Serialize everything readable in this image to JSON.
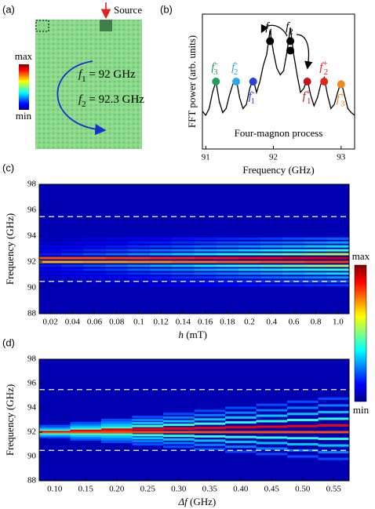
{
  "chart_data": [
    {
      "type": "image",
      "panel": "(a)",
      "source_label": "Source",
      "colorbar": {
        "max": "max",
        "min": "min"
      },
      "annotations": [
        {
          "symbol": "f",
          "sub": "1",
          "rest": " = 92 GHz"
        },
        {
          "symbol": "f",
          "sub": "2",
          "rest": " = 92.3 GHz"
        }
      ]
    },
    {
      "type": "line",
      "panel": "(b)",
      "xlabel": "Frequency (GHz)",
      "ylabel": "FFT power (arb. units)",
      "annotation": "Four-magnon process",
      "xlim": [
        90.95,
        93.2
      ],
      "ylim": [
        0,
        1
      ],
      "xticks": [
        91,
        92,
        93
      ],
      "color": "#000000",
      "x": [
        90.95,
        91.0,
        91.05,
        91.1,
        91.15,
        91.2,
        91.25,
        91.3,
        91.35,
        91.4,
        91.45,
        91.5,
        91.55,
        91.6,
        91.65,
        91.7,
        91.75,
        91.8,
        91.85,
        91.9,
        91.95,
        92.0,
        92.05,
        92.1,
        92.15,
        92.2,
        92.25,
        92.3,
        92.35,
        92.4,
        92.45,
        92.5,
        92.55,
        92.6,
        92.65,
        92.7,
        92.75,
        92.8,
        92.85,
        92.9,
        92.95,
        93.0,
        93.05,
        93.1,
        93.15,
        93.2
      ],
      "values": [
        0.28,
        0.25,
        0.3,
        0.42,
        0.5,
        0.35,
        0.27,
        0.3,
        0.4,
        0.48,
        0.52,
        0.38,
        0.3,
        0.33,
        0.45,
        0.52,
        0.42,
        0.5,
        0.62,
        0.7,
        0.88,
        0.72,
        0.6,
        0.55,
        0.58,
        0.72,
        0.9,
        0.7,
        0.55,
        0.42,
        0.45,
        0.52,
        0.4,
        0.32,
        0.38,
        0.48,
        0.53,
        0.4,
        0.3,
        0.33,
        0.42,
        0.5,
        0.4,
        0.3,
        0.27,
        0.25
      ],
      "peaks": [
        {
          "symbol": "f",
          "sup": "-",
          "sub": "3",
          "x": 91.15,
          "y": [
            0.5
          ],
          "color": "#1fa05a",
          "label_pos": "above"
        },
        {
          "symbol": "f",
          "sup": "-",
          "sub": "2",
          "x": 91.45,
          "y": [
            0.5
          ],
          "color": "#29aae1",
          "label_pos": "above"
        },
        {
          "symbol": "f",
          "sup": "-",
          "sub": "1",
          "x": 91.7,
          "y": [
            0.5
          ],
          "color": "#2a3fd6",
          "label_pos": "below"
        },
        {
          "symbol": "f",
          "sub": "1",
          "x": 91.95,
          "y": [
            0.8
          ],
          "color": "#000000",
          "label_pos": "above"
        },
        {
          "symbol": "f",
          "sub": "2",
          "x": 92.25,
          "y": [
            0.8,
            0.73
          ],
          "color": "#000000",
          "label_pos": "above"
        },
        {
          "symbol": "f",
          "sup": "+",
          "sub": "1",
          "x": 92.5,
          "y": [
            0.5
          ],
          "color": "#c0141e",
          "label_pos": "below"
        },
        {
          "symbol": "f",
          "sup": "+",
          "sub": "2",
          "x": 92.75,
          "y": [
            0.5
          ],
          "color": "#e8231c",
          "label_pos": "above"
        },
        {
          "symbol": "f",
          "sup": "+",
          "sub": "3",
          "x": 93.0,
          "y": [
            0.48
          ],
          "color": "#f08a1c",
          "label_pos": "below"
        }
      ]
    },
    {
      "type": "heatmap",
      "panel": "(c)",
      "xlabel": {
        "symbol": "h",
        "rest": " (mT)"
      },
      "ylabel": "Frequency (GHz)",
      "ylim": [
        88,
        98
      ],
      "yticks": [
        88,
        90,
        92,
        94,
        96,
        98
      ],
      "hlines": [
        90.5,
        95.5
      ],
      "colorbar": {
        "max": "max",
        "min": "min"
      },
      "categories": [
        "0.02",
        "0.04",
        "0.06",
        "0.08",
        "0.1",
        "0.12",
        "0.14",
        "0.16",
        "0.18",
        "0.2",
        "0.4",
        "0.6",
        "0.8",
        "1.0"
      ],
      "y": [
        90.2,
        90.5,
        90.8,
        91.1,
        91.4,
        91.7,
        92.0,
        92.3,
        92.6,
        92.9,
        93.2,
        93.5,
        93.8
      ],
      "z": [
        [
          0.05,
          0.06,
          0.08,
          0.1,
          0.12,
          0.15,
          0.7,
          0.8,
          0.15,
          0.12,
          0.1,
          0.08,
          0.06
        ],
        [
          0.06,
          0.07,
          0.09,
          0.12,
          0.14,
          0.18,
          0.7,
          0.8,
          0.18,
          0.14,
          0.12,
          0.09,
          0.07
        ],
        [
          0.07,
          0.09,
          0.11,
          0.13,
          0.17,
          0.21,
          0.72,
          0.8,
          0.21,
          0.17,
          0.13,
          0.11,
          0.09
        ],
        [
          0.08,
          0.1,
          0.12,
          0.15,
          0.19,
          0.24,
          0.72,
          0.82,
          0.24,
          0.19,
          0.15,
          0.12,
          0.1
        ],
        [
          0.09,
          0.11,
          0.14,
          0.17,
          0.22,
          0.27,
          0.74,
          0.82,
          0.27,
          0.22,
          0.17,
          0.14,
          0.11
        ],
        [
          0.1,
          0.12,
          0.15,
          0.19,
          0.24,
          0.3,
          0.74,
          0.84,
          0.3,
          0.24,
          0.19,
          0.15,
          0.12
        ],
        [
          0.11,
          0.14,
          0.17,
          0.21,
          0.26,
          0.33,
          0.76,
          0.84,
          0.33,
          0.26,
          0.21,
          0.17,
          0.14
        ],
        [
          0.12,
          0.15,
          0.18,
          0.23,
          0.29,
          0.36,
          0.76,
          0.86,
          0.36,
          0.29,
          0.23,
          0.18,
          0.15
        ],
        [
          0.13,
          0.16,
          0.2,
          0.25,
          0.31,
          0.39,
          0.78,
          0.86,
          0.39,
          0.31,
          0.25,
          0.2,
          0.16
        ],
        [
          0.14,
          0.17,
          0.21,
          0.27,
          0.34,
          0.42,
          0.78,
          0.88,
          0.42,
          0.34,
          0.27,
          0.21,
          0.17
        ],
        [
          0.15,
          0.18,
          0.23,
          0.29,
          0.36,
          0.45,
          0.8,
          0.88,
          0.45,
          0.36,
          0.29,
          0.23,
          0.18
        ],
        [
          0.16,
          0.2,
          0.24,
          0.31,
          0.38,
          0.48,
          0.8,
          0.9,
          0.48,
          0.38,
          0.31,
          0.24,
          0.2
        ],
        [
          0.17,
          0.21,
          0.26,
          0.33,
          0.41,
          0.51,
          0.82,
          0.9,
          0.51,
          0.41,
          0.33,
          0.26,
          0.21
        ],
        [
          0.18,
          0.22,
          0.28,
          0.35,
          0.43,
          0.54,
          0.82,
          0.92,
          0.54,
          0.43,
          0.35,
          0.28,
          0.22
        ]
      ]
    },
    {
      "type": "heatmap",
      "panel": "(d)",
      "xlabel": {
        "symbol": "Δf",
        "rest": " (GHz)"
      },
      "ylabel": "Frequency (GHz)",
      "ylim": [
        88,
        98
      ],
      "yticks": [
        88,
        90,
        92,
        94,
        96,
        98
      ],
      "hlines": [
        90.5,
        95.5
      ],
      "categories": [
        "0.10",
        "0.15",
        "0.20",
        "0.25",
        "0.30",
        "0.35",
        "0.40",
        "0.45",
        "0.50",
        "0.55"
      ],
      "columns": [
        {
          "y": [
            91.6,
            91.7,
            91.8,
            91.9,
            92.0,
            92.1,
            92.2,
            92.3,
            92.4,
            92.5
          ],
          "z": [
            0.2,
            0.25,
            0.32,
            0.42,
            0.8,
            0.88,
            0.42,
            0.32,
            0.25,
            0.2
          ]
        },
        {
          "y": [
            91.4,
            91.55,
            91.7,
            91.85,
            92.0,
            92.15,
            92.3,
            92.45,
            92.6,
            92.75
          ],
          "z": [
            0.2,
            0.25,
            0.32,
            0.42,
            0.8,
            0.88,
            0.42,
            0.32,
            0.25,
            0.2
          ]
        },
        {
          "y": [
            91.2,
            91.4,
            91.6,
            91.8,
            92.0,
            92.2,
            92.4,
            92.6,
            92.8,
            93.0
          ],
          "z": [
            0.2,
            0.25,
            0.32,
            0.42,
            0.8,
            0.88,
            0.42,
            0.32,
            0.25,
            0.2
          ]
        },
        {
          "y": [
            91.0,
            91.25,
            91.5,
            91.75,
            92.0,
            92.25,
            92.5,
            92.75,
            93.0,
            93.25
          ],
          "z": [
            0.2,
            0.25,
            0.32,
            0.42,
            0.8,
            0.88,
            0.42,
            0.32,
            0.25,
            0.2
          ]
        },
        {
          "y": [
            90.8,
            91.1,
            91.4,
            91.7,
            92.0,
            92.3,
            92.6,
            92.9,
            93.2,
            93.5
          ],
          "z": [
            0.2,
            0.25,
            0.32,
            0.42,
            0.8,
            0.88,
            0.42,
            0.32,
            0.25,
            0.2
          ]
        },
        {
          "y": [
            90.6,
            90.95,
            91.3,
            91.65,
            92.0,
            92.35,
            92.7,
            93.05,
            93.4,
            93.75
          ],
          "z": [
            0.2,
            0.25,
            0.32,
            0.42,
            0.8,
            0.88,
            0.42,
            0.32,
            0.25,
            0.2
          ]
        },
        {
          "y": [
            90.4,
            90.8,
            91.2,
            91.6,
            92.0,
            92.4,
            92.8,
            93.2,
            93.6,
            94.0
          ],
          "z": [
            0.2,
            0.25,
            0.32,
            0.42,
            0.8,
            0.88,
            0.42,
            0.32,
            0.25,
            0.2
          ]
        },
        {
          "y": [
            90.2,
            90.65,
            91.1,
            91.55,
            92.0,
            92.45,
            92.9,
            93.35,
            93.8,
            94.25
          ],
          "z": [
            0.2,
            0.25,
            0.32,
            0.42,
            0.8,
            0.88,
            0.42,
            0.32,
            0.25,
            0.2
          ]
        },
        {
          "y": [
            90.0,
            90.5,
            91.0,
            91.5,
            92.0,
            92.5,
            93.0,
            93.5,
            94.0,
            94.5
          ],
          "z": [
            0.2,
            0.25,
            0.32,
            0.42,
            0.8,
            0.88,
            0.42,
            0.32,
            0.25,
            0.2
          ]
        },
        {
          "y": [
            89.8,
            90.35,
            90.9,
            91.45,
            92.0,
            92.55,
            93.1,
            93.65,
            94.2,
            94.75
          ],
          "z": [
            0.2,
            0.25,
            0.32,
            0.42,
            0.8,
            0.88,
            0.42,
            0.32,
            0.25,
            0.2
          ]
        }
      ]
    }
  ]
}
